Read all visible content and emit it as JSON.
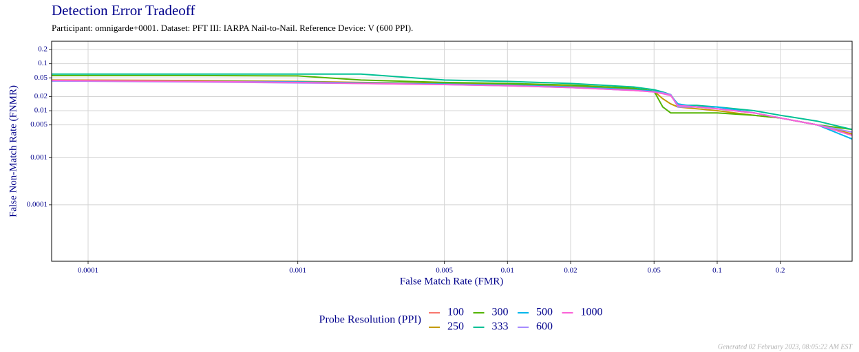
{
  "chart_data": {
    "type": "line",
    "title": "Detection Error Tradeoff",
    "subtitle": "Participant: omnigarde+0001. Dataset: PFT III: IARPA Nail-to-Nail. Reference Device: V (600 PPI).",
    "x_label": "False Match Rate (FMR)",
    "y_label": "False Non-Match Rate (FNMR)",
    "legend_title": "Probe Resolution (PPI)",
    "footnote": "Generated 02 February 2023, 08:05:22 AM EST",
    "log_x": true,
    "log_y": true,
    "grid": true,
    "xlim": [
      6.7e-05,
      0.44
    ],
    "ylim": [
      6.3e-06,
      0.3
    ],
    "xticks": [
      0.0001,
      0.001,
      0.005,
      0.01,
      0.02,
      0.05,
      0.1,
      0.2
    ],
    "yticks": [
      0.0001,
      0.001,
      0.005,
      0.01,
      0.02,
      0.05,
      0.1,
      0.2
    ],
    "x": [
      6.7e-05,
      0.0003,
      0.001,
      0.002,
      0.005,
      0.01,
      0.02,
      0.04,
      0.05,
      0.055,
      0.06,
      0.065,
      0.08,
      0.1,
      0.15,
      0.2,
      0.3,
      0.44
    ],
    "series": [
      {
        "name": "100",
        "color": "#F8766D",
        "values": [
          0.044,
          0.043,
          0.041,
          0.039,
          0.037,
          0.035,
          0.032,
          0.028,
          0.026,
          0.024,
          0.022,
          0.013,
          0.012,
          0.011,
          0.009,
          0.007,
          0.005,
          0.003
        ]
      },
      {
        "name": "250",
        "color": "#C49A00",
        "values": [
          0.045,
          0.044,
          0.042,
          0.04,
          0.038,
          0.036,
          0.033,
          0.029,
          0.026,
          0.018,
          0.014,
          0.012,
          0.011,
          0.01,
          0.008,
          0.007,
          0.005,
          0.0032
        ]
      },
      {
        "name": "300",
        "color": "#53B400",
        "values": [
          0.056,
          0.056,
          0.055,
          0.045,
          0.04,
          0.038,
          0.035,
          0.03,
          0.026,
          0.012,
          0.009,
          0.009,
          0.009,
          0.009,
          0.008,
          0.007,
          0.005,
          0.004
        ]
      },
      {
        "name": "333",
        "color": "#00C094",
        "values": [
          0.06,
          0.06,
          0.06,
          0.06,
          0.045,
          0.042,
          0.038,
          0.032,
          0.028,
          0.025,
          0.022,
          0.013,
          0.013,
          0.012,
          0.01,
          0.008,
          0.006,
          0.004
        ]
      },
      {
        "name": "500",
        "color": "#00B6EB",
        "values": [
          0.043,
          0.042,
          0.041,
          0.039,
          0.037,
          0.035,
          0.032,
          0.028,
          0.026,
          0.024,
          0.021,
          0.014,
          0.012,
          0.012,
          0.009,
          0.007,
          0.005,
          0.0025
        ]
      },
      {
        "name": "600",
        "color": "#A58AFF",
        "values": [
          0.043,
          0.041,
          0.039,
          0.038,
          0.036,
          0.034,
          0.031,
          0.027,
          0.025,
          0.024,
          0.022,
          0.012,
          0.012,
          0.011,
          0.009,
          0.007,
          0.005,
          0.0035
        ]
      },
      {
        "name": "1000",
        "color": "#FB61D7",
        "values": [
          0.044,
          0.042,
          0.04,
          0.038,
          0.036,
          0.034,
          0.031,
          0.027,
          0.025,
          0.023,
          0.021,
          0.013,
          0.012,
          0.011,
          0.009,
          0.007,
          0.005,
          0.003
        ]
      }
    ]
  }
}
